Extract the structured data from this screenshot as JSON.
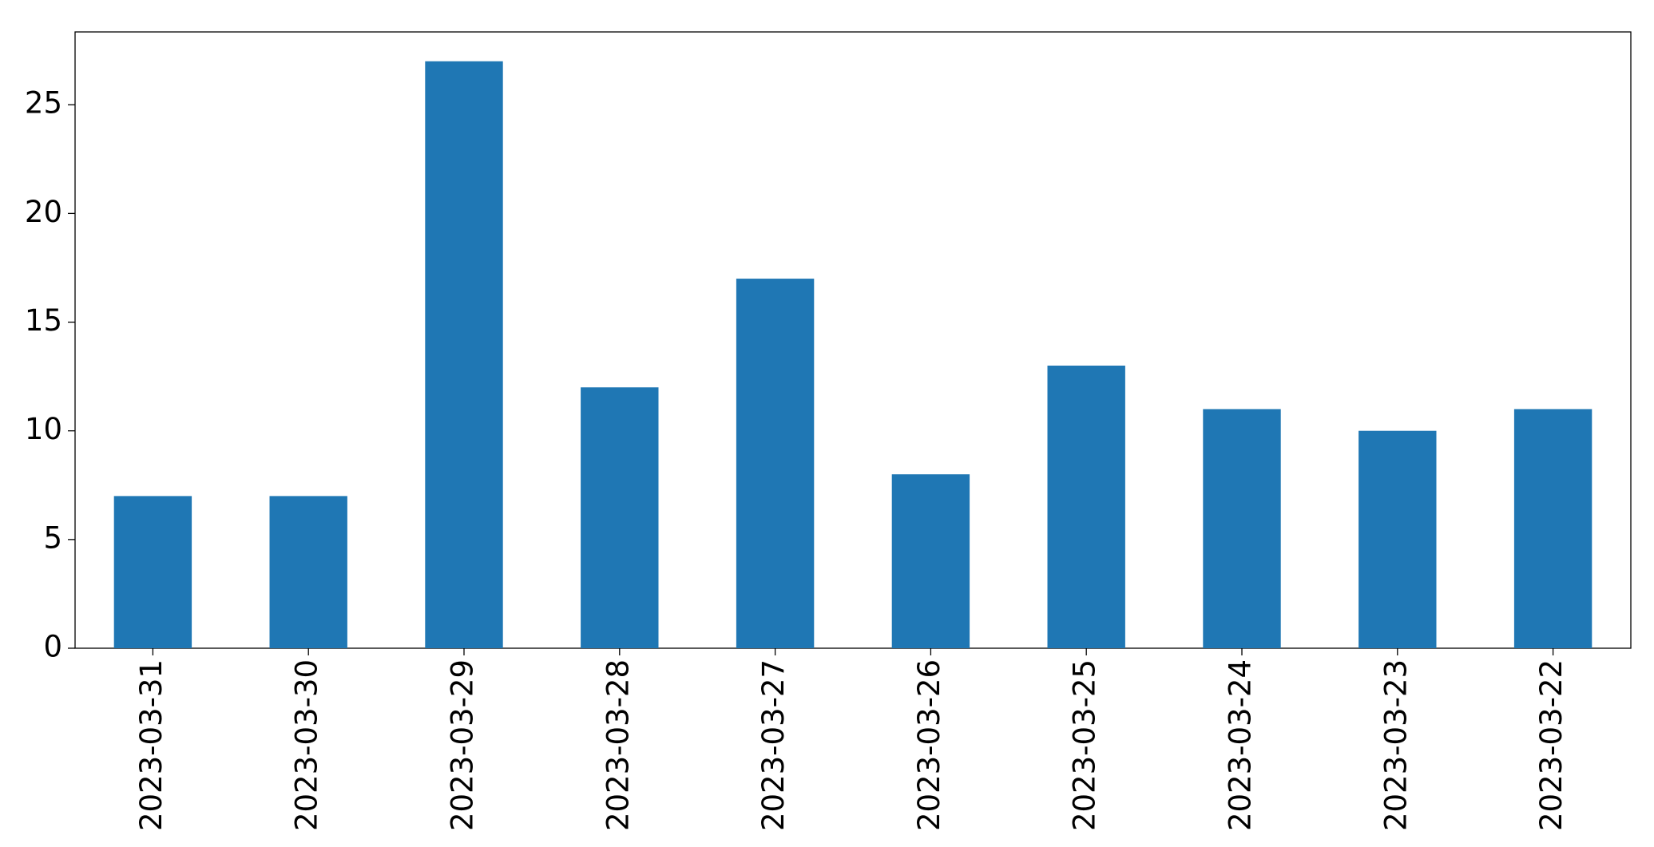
{
  "chart_data": {
    "type": "bar",
    "categories": [
      "2023-03-31",
      "2023-03-30",
      "2023-03-29",
      "2023-03-28",
      "2023-03-27",
      "2023-03-26",
      "2023-03-25",
      "2023-03-24",
      "2023-03-23",
      "2023-03-22"
    ],
    "values": [
      7,
      7,
      27,
      12,
      17,
      8,
      13,
      11,
      10,
      11
    ],
    "color": "#1f77b4",
    "ylim": [
      0,
      28.35
    ],
    "yticks": [
      0,
      5,
      10,
      15,
      20,
      25
    ],
    "grid": false
  }
}
